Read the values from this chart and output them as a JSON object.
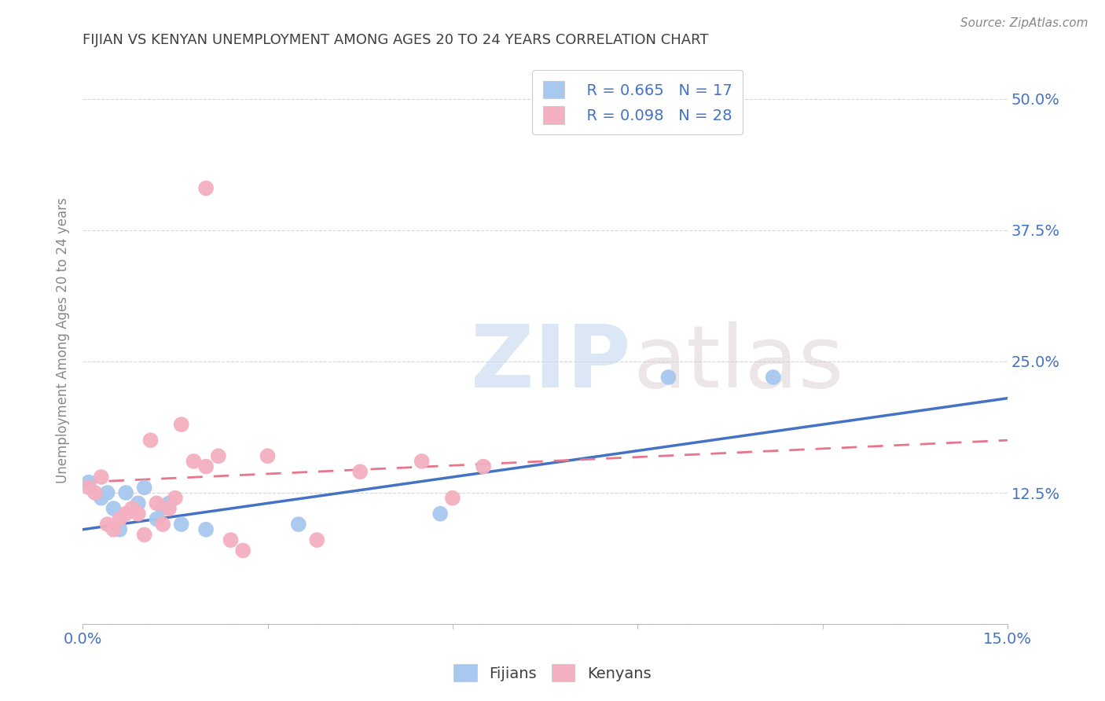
{
  "title": "FIJIAN VS KENYAN UNEMPLOYMENT AMONG AGES 20 TO 24 YEARS CORRELATION CHART",
  "source": "Source: ZipAtlas.com",
  "ylabel": "Unemployment Among Ages 20 to 24 years",
  "xlim": [
    0.0,
    0.15
  ],
  "ylim": [
    0.0,
    0.54
  ],
  "xticks": [
    0.0,
    0.03,
    0.06,
    0.09,
    0.12,
    0.15
  ],
  "xtick_labels": [
    "0.0%",
    "",
    "",
    "",
    "",
    "15.0%"
  ],
  "ytick_vals": [
    0.0,
    0.125,
    0.25,
    0.375,
    0.5
  ],
  "ytick_right_labels": [
    "",
    "12.5%",
    "25.0%",
    "37.5%",
    "50.0%"
  ],
  "fijian_color": "#a8c8f0",
  "kenyan_color": "#f4afc0",
  "fijian_line_color": "#4472c4",
  "kenyan_line_color": "#e8758a",
  "legend_r_fijian": "R = 0.665",
  "legend_n_fijian": "N = 17",
  "legend_r_kenyan": "R = 0.098",
  "legend_n_kenyan": "N = 28",
  "fijian_x": [
    0.001,
    0.003,
    0.004,
    0.005,
    0.006,
    0.007,
    0.009,
    0.01,
    0.012,
    0.013,
    0.014,
    0.016,
    0.02,
    0.035,
    0.058,
    0.095,
    0.112
  ],
  "fijian_y": [
    0.135,
    0.12,
    0.125,
    0.11,
    0.09,
    0.125,
    0.115,
    0.13,
    0.1,
    0.11,
    0.115,
    0.095,
    0.09,
    0.095,
    0.105,
    0.235,
    0.235
  ],
  "kenyan_x": [
    0.001,
    0.002,
    0.003,
    0.004,
    0.005,
    0.006,
    0.007,
    0.008,
    0.009,
    0.01,
    0.011,
    0.012,
    0.013,
    0.014,
    0.015,
    0.016,
    0.018,
    0.02,
    0.022,
    0.024,
    0.026,
    0.03,
    0.038,
    0.045,
    0.055,
    0.06,
    0.065,
    0.02
  ],
  "kenyan_y": [
    0.13,
    0.125,
    0.14,
    0.095,
    0.09,
    0.1,
    0.105,
    0.11,
    0.105,
    0.085,
    0.175,
    0.115,
    0.095,
    0.11,
    0.12,
    0.19,
    0.155,
    0.15,
    0.16,
    0.08,
    0.07,
    0.16,
    0.08,
    0.145,
    0.155,
    0.12,
    0.15,
    0.415
  ],
  "background_color": "#ffffff",
  "grid_color": "#cccccc",
  "title_color": "#404040",
  "axis_label_color": "#888888",
  "tick_color": "#4472c4",
  "right_tick_color": "#4472c4"
}
